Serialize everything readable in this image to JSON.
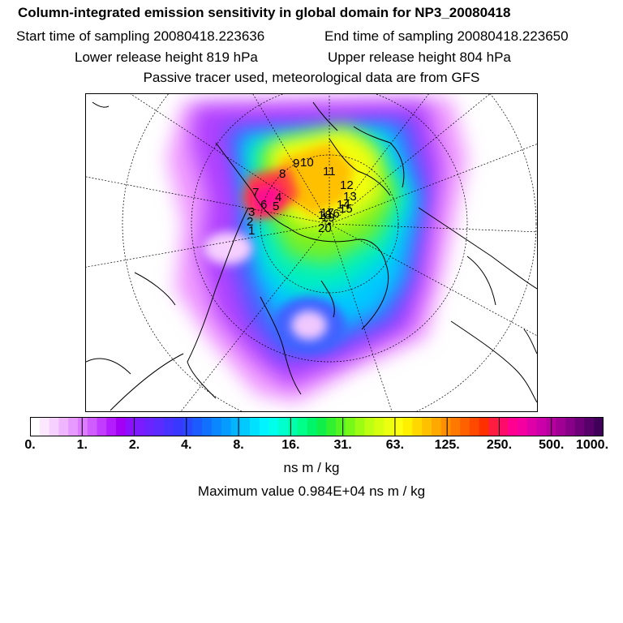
{
  "header": {
    "title": "Column-integrated emission sensitivity in global domain for NP3_20080418",
    "start_time": "Start time of sampling 20080418.223636",
    "end_time": "End time of sampling 20080418.223650",
    "lower_release": "Lower release height  819 hPa",
    "upper_release": "Upper release height  804 hPa",
    "note": "Passive tracer used, meteorological data are from GFS"
  },
  "map": {
    "projection": "polar-stereographic-north",
    "markers": [
      "1",
      "2",
      "3",
      "4",
      "5",
      "6",
      "7",
      "8",
      "9",
      "10",
      "11",
      "12",
      "13",
      "14",
      "15",
      "16",
      "17",
      "18",
      "19",
      "20"
    ]
  },
  "colorbar": {
    "tick_labels": [
      "0.",
      "1.",
      "2.",
      "4.",
      "8.",
      "16.",
      "31.",
      "63.",
      "125.",
      "250.",
      "500.",
      "1000."
    ],
    "colors": [
      "#ffffff",
      "#fbe8ff",
      "#f6d0ff",
      "#efb6ff",
      "#e69aff",
      "#dc7cff",
      "#cf5cff",
      "#c23cff",
      "#b31cff",
      "#a200f5",
      "#8c10ff",
      "#7a1cff",
      "#6a24ff",
      "#5a2cff",
      "#4832ff",
      "#3838ff",
      "#2a48ff",
      "#1c5cff",
      "#1270ff",
      "#0a86ff",
      "#069cff",
      "#04b4ff",
      "#02caff",
      "#00e0ff",
      "#00f4ff",
      "#00ffea",
      "#00ffcc",
      "#00ffaa",
      "#00ff88",
      "#00f46a",
      "#10ee4a",
      "#30f030",
      "#54f420",
      "#78f818",
      "#9cfc14",
      "#bcff10",
      "#d6ff10",
      "#ecff10",
      "#fcff10",
      "#fff000",
      "#ffd800",
      "#ffc000",
      "#ffa800",
      "#ff9000",
      "#ff7800",
      "#ff6000",
      "#ff4800",
      "#ff3000",
      "#ff1c40",
      "#ff0c6a",
      "#ff0090",
      "#f400a0",
      "#e000a8",
      "#cc00a8",
      "#b800a0",
      "#a00094",
      "#880088",
      "#70007a",
      "#58006a",
      "#40005a"
    ]
  },
  "units": "ns m / kg",
  "max_value": "Maximum value  0.984E+04 ns m / kg"
}
